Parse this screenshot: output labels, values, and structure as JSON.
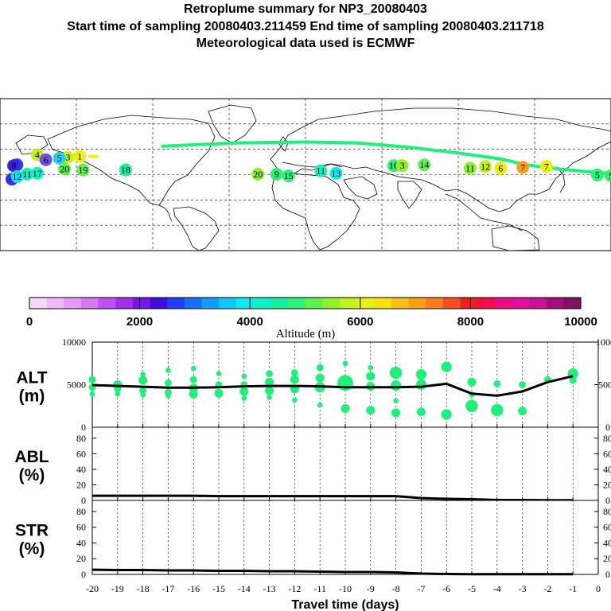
{
  "header": {
    "title": "Retroplume summary for NP3_20080403",
    "sampling": "Start time of sampling 20080403.211459     End time of sampling 20080403.211718",
    "meteo": "Meteorological data used is ECMWF"
  },
  "colors": {
    "track": "#1ef07a",
    "line": "#000000",
    "scale": [
      "#f8d8f8",
      "#f0b8f8",
      "#e898f8",
      "#d878f0",
      "#c050f0",
      "#a030e8",
      "#7818e0",
      "#4010d8",
      "#2040f0",
      "#1870f8",
      "#10a0f8",
      "#10c8f8",
      "#10e8f0",
      "#10f0c8",
      "#18f0a0",
      "#30f078",
      "#60f050",
      "#90f030",
      "#c0f020",
      "#e8f010",
      "#f8e010",
      "#f8c010",
      "#f8a018",
      "#f88020",
      "#f05020",
      "#e82020",
      "#f01050",
      "#e81080",
      "#e010a0",
      "#c81098",
      "#a01078",
      "#801060"
    ]
  },
  "map": {
    "points": [
      {
        "label": "1",
        "lon": -133,
        "lat": 48,
        "color": "#f0f010"
      },
      {
        "label": "3",
        "lon": -140,
        "lat": 47,
        "color": "#c8f020"
      },
      {
        "label": "5",
        "lon": -145,
        "lat": 46,
        "color": "#20d0f0"
      },
      {
        "label": "4",
        "lon": -158,
        "lat": 50,
        "color": "#c0f020"
      },
      {
        "label": "6",
        "lon": -153,
        "lat": 44,
        "color": "#7050e0"
      },
      {
        "label": "7",
        "lon": -170,
        "lat": 38,
        "color": "#3040f0"
      },
      {
        "label": "8",
        "lon": -172,
        "lat": 37,
        "color": "#4020e0"
      },
      {
        "label": "9",
        "lon": -173,
        "lat": 21,
        "color": "#4030e8"
      },
      {
        "label": "11",
        "lon": -164,
        "lat": 27,
        "color": "#10f0c0"
      },
      {
        "label": "12",
        "lon": -170,
        "lat": 24,
        "color": "#10e0f0"
      },
      {
        "label": "17",
        "lon": -158,
        "lat": 28,
        "color": "#10f0c8"
      },
      {
        "label": "20",
        "lon": -142,
        "lat": 33,
        "color": "#60f050"
      },
      {
        "label": "19",
        "lon": -131,
        "lat": 32,
        "color": "#60f050"
      },
      {
        "label": "18",
        "lon": -106,
        "lat": 32,
        "color": "#18f0a0"
      },
      {
        "label": "20",
        "lon": -28,
        "lat": 27,
        "color": "#90f030"
      },
      {
        "label": "9",
        "lon": -17,
        "lat": 27,
        "color": "#30f078"
      },
      {
        "label": "15",
        "lon": -10,
        "lat": 25,
        "color": "#30f078"
      },
      {
        "label": "11",
        "lon": 9,
        "lat": 31,
        "color": "#10f0c0"
      },
      {
        "label": "13",
        "lon": 18,
        "lat": 28,
        "color": "#10e8f0"
      },
      {
        "label": "16",
        "lon": 52,
        "lat": 37,
        "color": "#30f078"
      },
      {
        "label": "3",
        "lon": 57,
        "lat": 37,
        "color": "#90f030"
      },
      {
        "label": "14",
        "lon": 70,
        "lat": 38,
        "color": "#60f050"
      },
      {
        "label": "11",
        "lon": 97,
        "lat": 34,
        "color": "#90f030"
      },
      {
        "label": "12",
        "lon": 106,
        "lat": 36,
        "color": "#c0f020"
      },
      {
        "label": "6",
        "lon": 115,
        "lat": 34,
        "color": "#e8f010"
      },
      {
        "label": "7",
        "lon": 128,
        "lat": 35,
        "color": "#f8a018"
      },
      {
        "label": "7",
        "lon": 142,
        "lat": 36,
        "color": "#e8f010"
      },
      {
        "label": "5",
        "lon": 172,
        "lat": 26,
        "color": "#30f078"
      },
      {
        "label": "5",
        "lon": 180,
        "lat": 25,
        "color": "#30f078"
      }
    ]
  },
  "colorbar": {
    "min": 0,
    "max": 10000,
    "ticks": [
      "0",
      "2000",
      "4000",
      "6000",
      "8000",
      "10000"
    ],
    "label": "Altitude  (m)"
  },
  "chart_data": [
    {
      "type": "line",
      "name": "ALT",
      "ylabel_line1": "ALT",
      "ylabel_line2": "(m)",
      "ylim": [
        0,
        10000
      ],
      "yticks": [
        "0",
        "5000",
        "10000"
      ],
      "x": [
        -20,
        -19,
        -18,
        -17,
        -16,
        -15,
        -14,
        -13,
        -12,
        -11,
        -10,
        -9,
        -8,
        -7,
        -6,
        -5,
        -4,
        -3,
        -2,
        -1
      ],
      "values": [
        4950,
        4850,
        4750,
        4650,
        4650,
        4700,
        4800,
        4850,
        4850,
        4800,
        4700,
        4700,
        4700,
        4750,
        5100,
        3950,
        3700,
        4200,
        5300,
        6000
      ]
    },
    {
      "type": "line",
      "name": "ABL",
      "ylabel_line1": "ABL",
      "ylabel_line2": "(%)",
      "ylim": [
        0,
        90
      ],
      "yticks": [
        "0",
        "20",
        "40",
        "60",
        "80"
      ],
      "x": [
        -20,
        -19,
        -18,
        -17,
        -16,
        -15,
        -14,
        -13,
        -12,
        -11,
        -10,
        -9,
        -8,
        -7,
        -6,
        -5,
        -4,
        -3,
        -2,
        -1
      ],
      "values": [
        6,
        6,
        6,
        6,
        6,
        5.5,
        5.5,
        5.5,
        5.5,
        5.5,
        5.5,
        5.5,
        5.5,
        3,
        2,
        1.5,
        0.5,
        0.5,
        0.3,
        0.2
      ]
    },
    {
      "type": "line",
      "name": "STR",
      "ylabel_line1": "STR",
      "ylabel_line2": "(%)",
      "ylim": [
        0,
        90
      ],
      "yticks": [
        "0",
        "20",
        "40",
        "60",
        "80"
      ],
      "x": [
        -20,
        -19,
        -18,
        -17,
        -16,
        -15,
        -14,
        -13,
        -12,
        -11,
        -10,
        -9,
        -8,
        -7,
        -6,
        -5,
        -4,
        -3,
        -2,
        -1
      ],
      "values": [
        6,
        5.5,
        5.5,
        5,
        5,
        4.5,
        4.5,
        4,
        4,
        3.5,
        3,
        3,
        2.5,
        1,
        0.5,
        0.3,
        0.2,
        0.2,
        0.2,
        0.2
      ],
      "xlabel": "Travel time (days)",
      "xticks": [
        "-20",
        "-19",
        "-18",
        "-17",
        "-16",
        "-15",
        "-14",
        "-13",
        "-12",
        "-11",
        "-10",
        "-9",
        "-8",
        "-7",
        "-6",
        "-5",
        "-4",
        "-3",
        "-2",
        "-1",
        "0"
      ]
    }
  ],
  "bubbles": [
    {
      "day": -20,
      "alts": [
        4700,
        5600,
        3900
      ],
      "sizes": [
        2,
        2,
        1.5
      ]
    },
    {
      "day": -19,
      "alts": [
        4500,
        5000,
        3900
      ],
      "sizes": [
        2,
        2.5,
        1.5
      ]
    },
    {
      "day": -18,
      "alts": [
        4300,
        5500,
        6200,
        3800
      ],
      "sizes": [
        2,
        2.5,
        1.5,
        1.5
      ]
    },
    {
      "day": -17,
      "alts": [
        4100,
        5200,
        6700,
        3700
      ],
      "sizes": [
        2,
        2,
        1.5,
        1.5
      ]
    },
    {
      "day": -16,
      "alts": [
        3900,
        4600,
        5600,
        6900
      ],
      "sizes": [
        2.5,
        2.5,
        2,
        1.5
      ]
    },
    {
      "day": -15,
      "alts": [
        4000,
        5000,
        6300,
        3800
      ],
      "sizes": [
        2.5,
        2,
        1.5,
        1.5
      ]
    },
    {
      "day": -14,
      "alts": [
        4200,
        5000,
        6000,
        3400
      ],
      "sizes": [
        2.5,
        2,
        1.5,
        1.5
      ]
    },
    {
      "day": -13,
      "alts": [
        4300,
        5300,
        6300,
        3500
      ],
      "sizes": [
        2.5,
        2.5,
        2,
        1.5
      ]
    },
    {
      "day": -12,
      "alts": [
        4500,
        5600,
        6400,
        3200
      ],
      "sizes": [
        2.5,
        2.5,
        2,
        1.5
      ]
    },
    {
      "day": -11,
      "alts": [
        4700,
        5800,
        7000,
        2600
      ],
      "sizes": [
        3,
        2.5,
        2,
        1.5
      ]
    },
    {
      "day": -10,
      "alts": [
        5200,
        2200,
        7500
      ],
      "sizes": [
        4.5,
        2.5,
        1.5
      ]
    },
    {
      "day": -9,
      "alts": [
        4800,
        6000,
        2000,
        7000
      ],
      "sizes": [
        2.5,
        2.5,
        2.5,
        1.5
      ]
    },
    {
      "day": -8,
      "alts": [
        4900,
        6400,
        1700,
        3100
      ],
      "sizes": [
        3,
        3.5,
        2.5,
        1.5
      ]
    },
    {
      "day": -7,
      "alts": [
        5000,
        6200,
        1800
      ],
      "sizes": [
        3,
        3,
        2.5
      ]
    },
    {
      "day": -6,
      "alts": [
        7100,
        1500
      ],
      "sizes": [
        3,
        3
      ]
    },
    {
      "day": -5,
      "alts": [
        5300,
        2500,
        3800
      ],
      "sizes": [
        2.5,
        3.5,
        1.5
      ]
    },
    {
      "day": -4,
      "alts": [
        5100,
        2000
      ],
      "sizes": [
        2,
        3.5
      ]
    },
    {
      "day": -3,
      "alts": [
        5000,
        1900
      ],
      "sizes": [
        2,
        2.5
      ]
    },
    {
      "day": -2,
      "alts": [
        5600
      ],
      "sizes": [
        2
      ]
    },
    {
      "day": -1,
      "alts": [
        6300,
        5500,
        5900
      ],
      "sizes": [
        3,
        2,
        2
      ]
    }
  ]
}
